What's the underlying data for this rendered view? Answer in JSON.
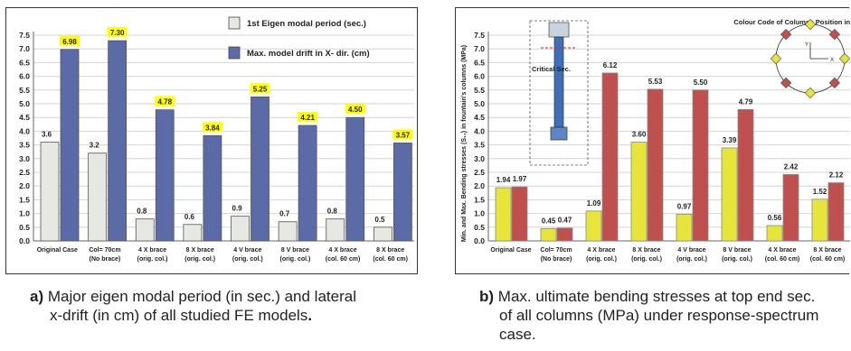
{
  "chart_data": [
    {
      "type": "bar",
      "categories": [
        [
          "Original Case"
        ],
        [
          "Col= 70cm",
          "(No brace)"
        ],
        [
          "4 X brace",
          "(orig. col.)"
        ],
        [
          "8 X brace",
          "(orig. col.)"
        ],
        [
          "4 V brace",
          "(orig. col.)"
        ],
        [
          "8 V brace",
          "(orig. col.)"
        ],
        [
          "4 X brace",
          "(col. 60 cm)"
        ],
        [
          "8 X brace",
          "(col. 60 cm)"
        ]
      ],
      "series": [
        {
          "name": "1st Eigen modal period (sec.)",
          "values": [
            3.6,
            3.2,
            0.8,
            0.6,
            0.9,
            0.7,
            0.8,
            0.5
          ],
          "labels": [
            "3.6",
            "3.2",
            "0.8",
            "0.6",
            "0.9",
            "0.7",
            "0.8",
            "0.5"
          ],
          "color": "#e6e9e2"
        },
        {
          "name": "Max. model drift in X- dir. (cm)",
          "values": [
            6.98,
            7.3,
            4.78,
            3.84,
            5.25,
            4.21,
            4.5,
            3.57
          ],
          "labels": [
            "6.98",
            "7.30",
            "4.78",
            "3.84",
            "5.25",
            "4.21",
            "4.50",
            "3.57"
          ],
          "color": "#5b6ba8"
        }
      ],
      "ylim": [
        0,
        7.5
      ],
      "yticks": [
        "0.0",
        "0.5",
        "1.0",
        "1.5",
        "2.0",
        "2.5",
        "3.0",
        "3.5",
        "4.0",
        "4.5",
        "5.0",
        "5.5",
        "6.0",
        "6.5",
        "7.0",
        "7.5"
      ],
      "legend_position": "top-right",
      "grid": true
    },
    {
      "type": "bar",
      "categories": [
        [
          "Original Case"
        ],
        [
          "Col= 70cm",
          "(No brace)"
        ],
        [
          "4 X brace",
          "(orig. col.)"
        ],
        [
          "8 X brace",
          "(orig. col.)"
        ],
        [
          "4 V brace",
          "(orig. col.)"
        ],
        [
          "8 V brace",
          "(orig. col.)"
        ],
        [
          "4 X brace",
          "(col. 60 cm)"
        ],
        [
          "8 X brace",
          "(col. 60 cm)"
        ]
      ],
      "series": [
        {
          "values": [
            1.94,
            0.45,
            1.09,
            3.6,
            0.97,
            3.39,
            0.56,
            1.52
          ],
          "labels": [
            "1.94",
            "0.45",
            "1.09",
            "3.60",
            "0.97",
            "3.39",
            "0.56",
            "1.52"
          ],
          "color": "#e8e53a"
        },
        {
          "values": [
            1.97,
            0.47,
            6.12,
            5.53,
            5.5,
            4.79,
            2.42,
            2.12
          ],
          "labels": [
            "1.97",
            "0.47",
            "6.12",
            "5.53",
            "5.50",
            "4.79",
            "2.42",
            "2.12"
          ],
          "color": "#c0504d"
        }
      ],
      "ylim": [
        0,
        7.5
      ],
      "yticks": [
        "0.0",
        "0.5",
        "1.0",
        "1.5",
        "2.0",
        "2.5",
        "3.0",
        "3.5",
        "4.0",
        "4.5",
        "5.0",
        "5.5",
        "6.0",
        "6.5",
        "7.0",
        "7.5"
      ],
      "ylabel": "Min. and Max. Bending stresses (S₁₁) in fountain's columns (MPa)",
      "grid": true,
      "insets": {
        "critical_section": "Critical Sec.",
        "plan_title": "Colour Code of Columns Position in PLAN",
        "plan_axis_y": "Y",
        "plan_axis_x": "X"
      }
    }
  ],
  "captions": {
    "a_prefix": "a)",
    "a_line1": "Major eigen modal period (in sec.) and lateral",
    "a_line2": "x-drift (in cm) of all studied FE models",
    "a_suffix": ".",
    "b_prefix": "b)",
    "b_line1": "Max. ultimate bending stresses at top end sec.",
    "b_line2": "of all columns (MPa) under response-spectrum",
    "b_line3": "case."
  }
}
